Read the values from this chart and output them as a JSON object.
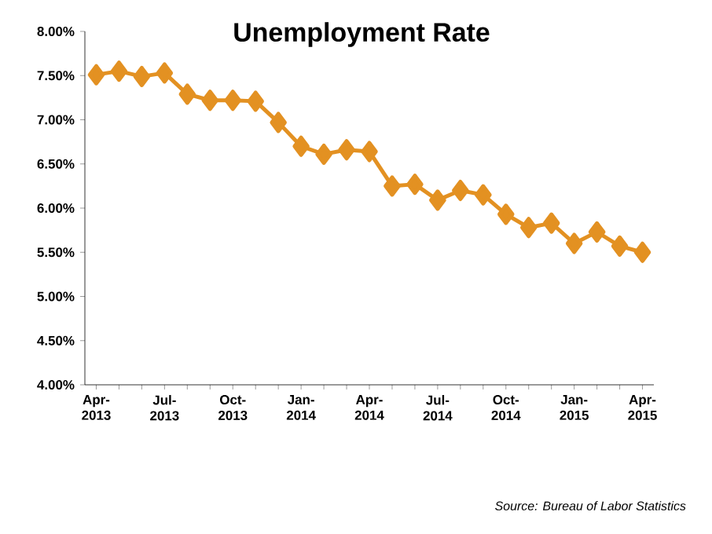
{
  "chart_data": {
    "type": "line",
    "title": "Unemployment Rate",
    "categories": [
      "Apr-2013",
      null,
      null,
      "Jul-2013",
      null,
      null,
      "Oct-2013",
      null,
      null,
      "Jan-2014",
      null,
      null,
      "Apr-2014",
      null,
      null,
      "Jul-2014",
      null,
      null,
      "Oct-2014",
      null,
      null,
      "Jan-2015",
      null,
      null,
      "Apr-2015"
    ],
    "values": [
      7.51,
      7.55,
      7.49,
      7.53,
      7.29,
      7.22,
      7.22,
      7.21,
      6.97,
      6.7,
      6.61,
      6.66,
      6.64,
      6.25,
      6.27,
      6.09,
      6.2,
      6.15,
      5.93,
      5.78,
      5.83,
      5.6,
      5.73,
      5.57,
      5.5
    ],
    "color": "#e39122",
    "marker": "diamond",
    "line_style": "solid",
    "ylim": [
      4.0,
      8.0
    ],
    "yticks": [
      {
        "value": 4.0,
        "label": "4.00%"
      },
      {
        "value": 4.5,
        "label": "4.50%"
      },
      {
        "value": 5.0,
        "label": "5.00%"
      },
      {
        "value": 5.5,
        "label": "5.50%"
      },
      {
        "value": 6.0,
        "label": "6.00%"
      },
      {
        "value": 6.5,
        "label": "6.50%"
      },
      {
        "value": 7.0,
        "label": "7.00%"
      },
      {
        "value": 7.5,
        "label": "7.50%"
      },
      {
        "value": 8.0,
        "label": "8.00%"
      }
    ],
    "annotations": [
      "Source: Bureau of Labor Statistics"
    ]
  }
}
